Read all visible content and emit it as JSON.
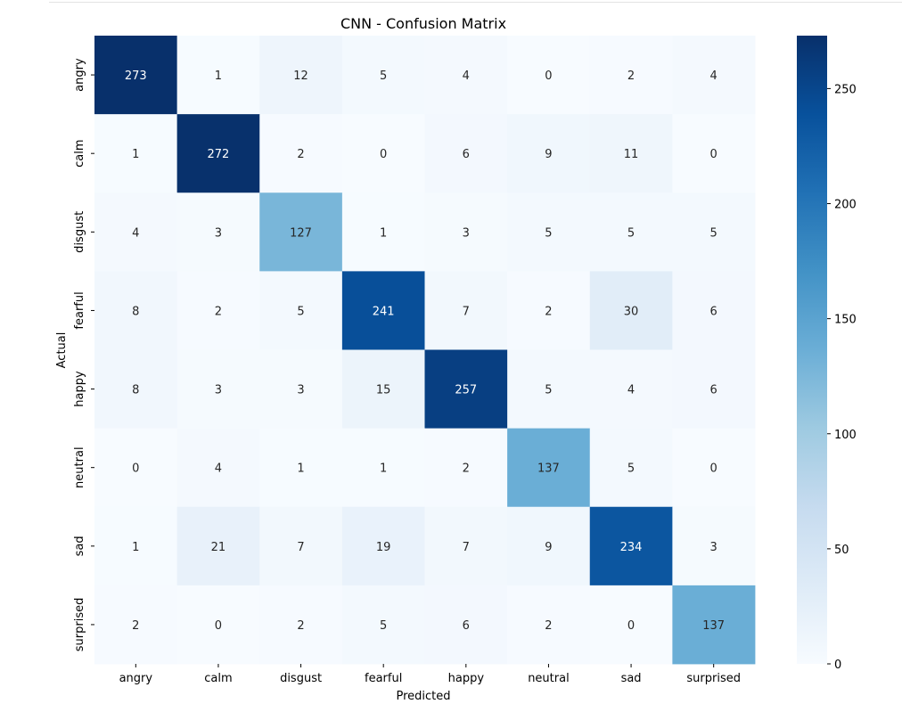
{
  "chart_data": {
    "type": "heatmap",
    "title": "CNN - Confusion Matrix",
    "xlabel": "Predicted",
    "ylabel": "Actual",
    "x_categories": [
      "angry",
      "calm",
      "disgust",
      "fearful",
      "happy",
      "neutral",
      "sad",
      "surprised"
    ],
    "y_categories": [
      "angry",
      "calm",
      "disgust",
      "fearful",
      "happy",
      "neutral",
      "sad",
      "surprised"
    ],
    "values": [
      [
        273,
        1,
        12,
        5,
        4,
        0,
        2,
        4
      ],
      [
        1,
        272,
        2,
        0,
        6,
        9,
        11,
        0
      ],
      [
        4,
        3,
        127,
        1,
        3,
        5,
        5,
        5
      ],
      [
        8,
        2,
        5,
        241,
        7,
        2,
        30,
        6
      ],
      [
        8,
        3,
        3,
        15,
        257,
        5,
        4,
        6
      ],
      [
        0,
        4,
        1,
        1,
        2,
        137,
        5,
        0
      ],
      [
        1,
        21,
        7,
        19,
        7,
        9,
        234,
        3
      ],
      [
        2,
        0,
        2,
        5,
        6,
        2,
        0,
        137
      ]
    ],
    "colormap": "Blues",
    "vmin": 0,
    "vmax": 273,
    "colorbar_ticks": [
      0,
      50,
      100,
      150,
      200,
      250
    ],
    "grid": false,
    "legend": "colorbar-right"
  }
}
